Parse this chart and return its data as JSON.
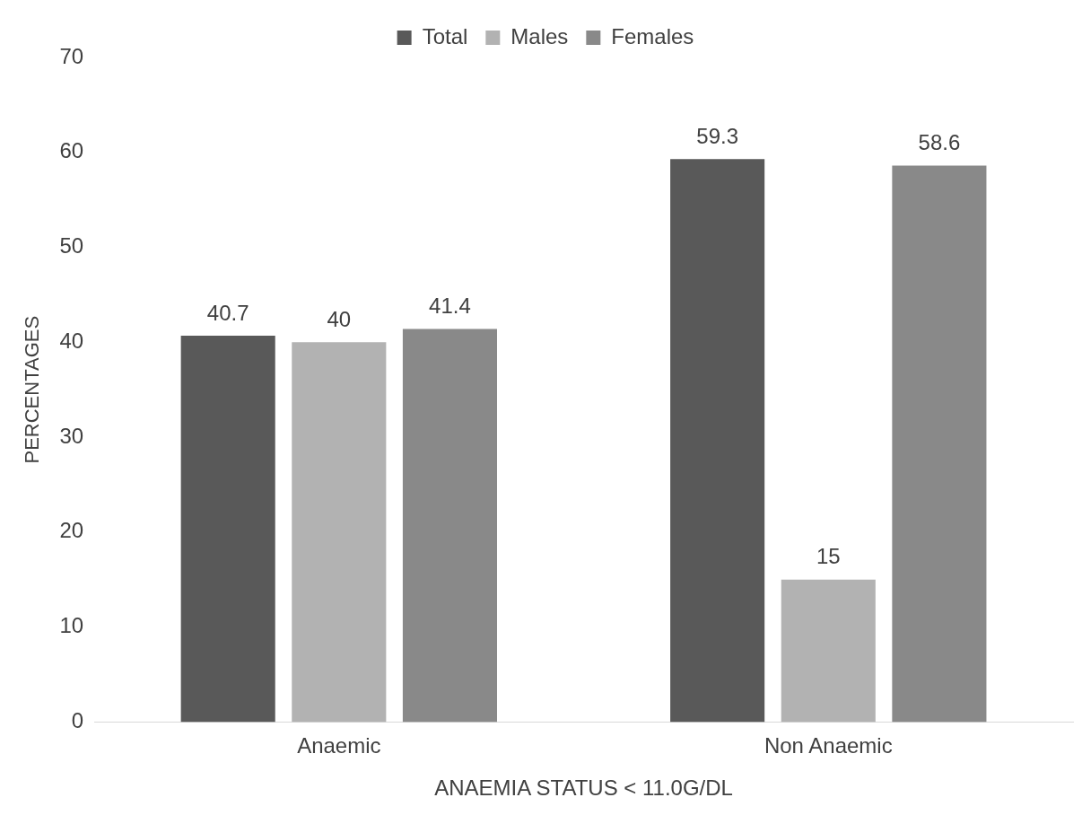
{
  "chart_data": {
    "type": "bar",
    "xlabel": "ANAEMIA STATUS < 11.0G/DL",
    "ylabel": "PERCENTAGES",
    "categories": [
      "Anaemic",
      "Non Anaemic"
    ],
    "series": [
      {
        "name": "Total",
        "color": "#595959",
        "values": [
          40.7,
          59.3
        ]
      },
      {
        "name": "Males",
        "color": "#b2b2b2",
        "values": [
          40,
          15
        ]
      },
      {
        "name": "Females",
        "color": "#898989",
        "values": [
          41.4,
          58.6
        ]
      }
    ],
    "ylim": [
      0,
      70
    ],
    "yticks": [
      0,
      10,
      20,
      30,
      40,
      50,
      60,
      70
    ],
    "grid": false,
    "legend": "top",
    "data_labels": true
  }
}
